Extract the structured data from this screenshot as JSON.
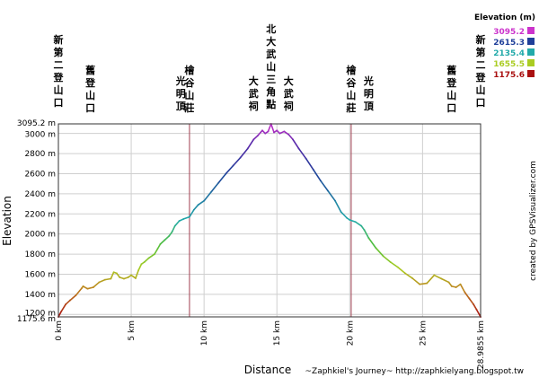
{
  "chart_data": {
    "type": "line",
    "title": "",
    "xlabel": "Distance",
    "ylabel": "Elevation",
    "x_unit": "km",
    "y_unit": "m",
    "xlim": [
      0,
      28.9855
    ],
    "ylim": [
      1175.6,
      3095.2
    ],
    "x_ticks": [
      {
        "value": 0,
        "label": "0 km"
      },
      {
        "value": 5,
        "label": "5 km"
      },
      {
        "value": 10,
        "label": "10 km"
      },
      {
        "value": 15,
        "label": "15 km"
      },
      {
        "value": 20,
        "label": "20 km"
      },
      {
        "value": 25,
        "label": "25 km"
      },
      {
        "value": 28.9855,
        "label": "28.9855 km"
      }
    ],
    "y_ticks": [
      {
        "value": 1175.6,
        "label": "1175.6 m"
      },
      {
        "value": 1200,
        "label": "1200 m"
      },
      {
        "value": 1400,
        "label": "1400 m"
      },
      {
        "value": 1600,
        "label": "1600 m"
      },
      {
        "value": 1800,
        "label": "1800 m"
      },
      {
        "value": 2000,
        "label": "2000 m"
      },
      {
        "value": 2200,
        "label": "2200 m"
      },
      {
        "value": 2400,
        "label": "2400 m"
      },
      {
        "value": 2600,
        "label": "2600 m"
      },
      {
        "value": 2800,
        "label": "2800 m"
      },
      {
        "value": 3000,
        "label": "3000 m"
      },
      {
        "value": 3095.2,
        "label": "3095.2 m"
      }
    ],
    "grid": true,
    "legend": {
      "title": "Elevation (m)",
      "placement": "top-right",
      "entries": [
        {
          "label": "3095.2",
          "color": "#cc33cc"
        },
        {
          "label": "2615.3",
          "color": "#1f3f99"
        },
        {
          "label": "2135.4",
          "color": "#22aaaa"
        },
        {
          "label": "1655.5",
          "color": "#aacc22"
        },
        {
          "label": "1175.6",
          "color": "#aa1111"
        }
      ]
    },
    "waypoints": [
      {
        "x": 0,
        "label": "新第二登山口",
        "marker": false
      },
      {
        "x": 2.2,
        "label": "舊登山口",
        "marker": false
      },
      {
        "x": 8.4,
        "label": "光明頂",
        "marker": false
      },
      {
        "x": 9.0,
        "label": "檜谷山莊",
        "marker": true
      },
      {
        "x": 13.4,
        "label": "大武祠",
        "marker": false
      },
      {
        "x": 14.6,
        "label": "北大武山三角點",
        "marker": false
      },
      {
        "x": 15.8,
        "label": "大武祠",
        "marker": false
      },
      {
        "x": 20.1,
        "label": "檜谷山莊",
        "marker": true
      },
      {
        "x": 21.3,
        "label": "光明頂",
        "marker": false
      },
      {
        "x": 27.0,
        "label": "舊登山口",
        "marker": false
      },
      {
        "x": 28.9855,
        "label": "新第二登山口",
        "marker": false
      }
    ],
    "series": [
      {
        "x": [
          0,
          0.2,
          0.5,
          0.8,
          1.2,
          1.6,
          1.7,
          2.0,
          2.4,
          2.8,
          3.2,
          3.6,
          3.8,
          4.0,
          4.2,
          4.5,
          4.8,
          5.0,
          5.3,
          5.5,
          5.7,
          5.9,
          6.2,
          6.6,
          6.8,
          7.0,
          7.3,
          7.6,
          7.8,
          8.0,
          8.3,
          8.6,
          9.0,
          9.3,
          9.6,
          10.0,
          10.5,
          11.0,
          11.5,
          12.0,
          12.5,
          13.0,
          13.4,
          13.7,
          14.0,
          14.2,
          14.4,
          14.6,
          14.8,
          15.0,
          15.2,
          15.5,
          15.8,
          16.1,
          16.5,
          17.0,
          17.5,
          18.0,
          18.5,
          19.0,
          19.4,
          19.8,
          20.0,
          20.4,
          20.8,
          21.0,
          21.3,
          21.8,
          22.3,
          22.8,
          23.3,
          23.8,
          24.3,
          24.8,
          25.3,
          25.8,
          26.3,
          26.8,
          27.0,
          27.3,
          27.6,
          27.9,
          28.2,
          28.5,
          28.7,
          28.9855
        ],
        "y": [
          1175.6,
          1230,
          1300,
          1340,
          1390,
          1460,
          1480,
          1455,
          1470,
          1520,
          1545,
          1555,
          1620,
          1610,
          1570,
          1555,
          1570,
          1590,
          1560,
          1640,
          1700,
          1720,
          1760,
          1800,
          1850,
          1900,
          1940,
          1980,
          2020,
          2080,
          2130,
          2150,
          2170,
          2240,
          2290,
          2330,
          2420,
          2510,
          2600,
          2680,
          2760,
          2850,
          2940,
          2980,
          3030,
          3000,
          3020,
          3095.2,
          3010,
          3030,
          3000,
          3020,
          2990,
          2940,
          2850,
          2750,
          2640,
          2530,
          2430,
          2330,
          2220,
          2160,
          2140,
          2120,
          2080,
          2040,
          1960,
          1860,
          1780,
          1720,
          1670,
          1610,
          1560,
          1500,
          1510,
          1590,
          1555,
          1520,
          1480,
          1470,
          1500,
          1420,
          1360,
          1300,
          1250,
          1175.6
        ]
      }
    ]
  },
  "credits": {
    "author": "~Zaphkiel's Journey~ http://zaphkielyang.blogspot.tw",
    "generator": "created by GPSVisualizer.com"
  }
}
